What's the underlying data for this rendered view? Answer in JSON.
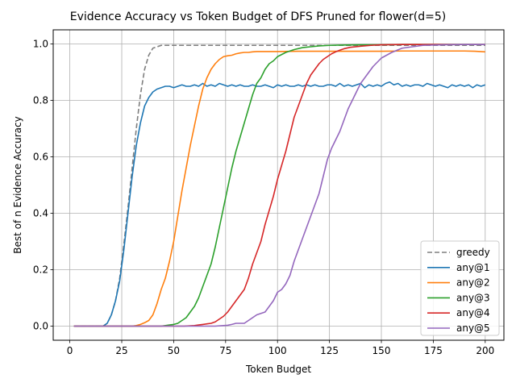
{
  "chart_data": {
    "type": "line",
    "title": "Evidence Accuracy vs Token Budget of DFS Pruned for flower(d=5)",
    "xlabel": "Token Budget",
    "ylabel": "Best of n Evidence Accuracy",
    "xlim": [
      -8,
      209
    ],
    "ylim": [
      -0.05,
      1.05
    ],
    "xticks": [
      0,
      25,
      50,
      75,
      100,
      125,
      150,
      175,
      200
    ],
    "yticks": [
      0.0,
      0.2,
      0.4,
      0.6,
      0.8,
      1.0
    ],
    "grid": true,
    "legend_position": "lower-right",
    "series": [
      {
        "name": "greedy",
        "color": "#7f7f7f",
        "dash": true,
        "x": [
          2,
          16,
          18,
          20,
          22,
          24,
          26,
          28,
          30,
          32,
          34,
          36,
          38,
          40,
          42,
          44,
          46,
          48,
          50,
          75,
          100,
          125,
          150,
          175,
          200
        ],
        "y": [
          0.0,
          0.0,
          0.01,
          0.04,
          0.09,
          0.17,
          0.29,
          0.42,
          0.56,
          0.7,
          0.82,
          0.91,
          0.96,
          0.985,
          0.99,
          0.995,
          0.995,
          0.995,
          0.995,
          0.995,
          0.995,
          0.995,
          0.995,
          0.995,
          0.995
        ]
      },
      {
        "name": "any@1",
        "color": "#1f77b4",
        "dash": false,
        "x": [
          2,
          16,
          18,
          20,
          22,
          24,
          26,
          28,
          30,
          32,
          34,
          36,
          38,
          40,
          42,
          44,
          46,
          48,
          50,
          52,
          54,
          56,
          58,
          60,
          62,
          64,
          66,
          68,
          70,
          72,
          74,
          76,
          78,
          80,
          82,
          84,
          86,
          88,
          90,
          92,
          94,
          96,
          98,
          100,
          102,
          104,
          106,
          108,
          110,
          112,
          114,
          116,
          118,
          120,
          122,
          124,
          126,
          128,
          130,
          132,
          134,
          136,
          138,
          140,
          142,
          144,
          146,
          148,
          150,
          152,
          154,
          156,
          158,
          160,
          162,
          164,
          166,
          168,
          170,
          172,
          174,
          176,
          178,
          180,
          182,
          184,
          186,
          188,
          190,
          192,
          194,
          196,
          198,
          200
        ],
        "y": [
          0.0,
          0.0,
          0.01,
          0.04,
          0.09,
          0.16,
          0.27,
          0.4,
          0.53,
          0.64,
          0.72,
          0.78,
          0.81,
          0.83,
          0.84,
          0.845,
          0.85,
          0.85,
          0.845,
          0.85,
          0.855,
          0.85,
          0.85,
          0.855,
          0.85,
          0.86,
          0.85,
          0.855,
          0.85,
          0.86,
          0.855,
          0.85,
          0.855,
          0.85,
          0.855,
          0.85,
          0.85,
          0.855,
          0.85,
          0.85,
          0.855,
          0.85,
          0.845,
          0.855,
          0.85,
          0.855,
          0.85,
          0.85,
          0.855,
          0.85,
          0.855,
          0.85,
          0.855,
          0.85,
          0.85,
          0.855,
          0.855,
          0.85,
          0.86,
          0.85,
          0.855,
          0.85,
          0.855,
          0.86,
          0.845,
          0.855,
          0.85,
          0.855,
          0.85,
          0.86,
          0.865,
          0.855,
          0.86,
          0.85,
          0.855,
          0.85,
          0.855,
          0.855,
          0.85,
          0.86,
          0.855,
          0.85,
          0.855,
          0.85,
          0.845,
          0.855,
          0.85,
          0.855,
          0.85,
          0.855,
          0.845,
          0.855,
          0.85,
          0.855
        ]
      },
      {
        "name": "any@2",
        "color": "#ff7f0e",
        "dash": false,
        "x": [
          2,
          30,
          32,
          34,
          36,
          38,
          40,
          42,
          44,
          46,
          48,
          50,
          52,
          54,
          56,
          58,
          60,
          62,
          64,
          66,
          68,
          70,
          72,
          74,
          76,
          78,
          80,
          82,
          84,
          86,
          88,
          90,
          95,
          100,
          110,
          120,
          125,
          130,
          135,
          140,
          150,
          160,
          170,
          175,
          180,
          190,
          195,
          200
        ],
        "y": [
          0.0,
          0.0,
          0.002,
          0.006,
          0.012,
          0.02,
          0.04,
          0.08,
          0.13,
          0.17,
          0.23,
          0.3,
          0.39,
          0.48,
          0.56,
          0.64,
          0.71,
          0.78,
          0.84,
          0.88,
          0.91,
          0.93,
          0.945,
          0.955,
          0.958,
          0.96,
          0.965,
          0.968,
          0.97,
          0.97,
          0.972,
          0.973,
          0.973,
          0.973,
          0.974,
          0.974,
          0.974,
          0.974,
          0.974,
          0.974,
          0.974,
          0.975,
          0.975,
          0.975,
          0.975,
          0.975,
          0.974,
          0.972
        ]
      },
      {
        "name": "any@3",
        "color": "#2ca02c",
        "dash": false,
        "x": [
          2,
          44,
          46,
          48,
          50,
          52,
          54,
          56,
          58,
          60,
          62,
          64,
          66,
          68,
          70,
          72,
          74,
          76,
          78,
          80,
          82,
          84,
          86,
          88,
          90,
          92,
          94,
          96,
          98,
          100,
          104,
          108,
          112,
          116,
          120,
          125,
          130,
          140,
          150,
          160,
          170,
          180,
          190,
          200
        ],
        "y": [
          0.0,
          0.0,
          0.002,
          0.004,
          0.006,
          0.01,
          0.02,
          0.03,
          0.05,
          0.07,
          0.1,
          0.14,
          0.18,
          0.22,
          0.28,
          0.35,
          0.42,
          0.49,
          0.56,
          0.62,
          0.67,
          0.72,
          0.77,
          0.82,
          0.86,
          0.88,
          0.91,
          0.93,
          0.94,
          0.955,
          0.97,
          0.98,
          0.987,
          0.99,
          0.993,
          0.995,
          0.996,
          0.997,
          0.997,
          0.998,
          0.998,
          0.998,
          0.998,
          0.998
        ]
      },
      {
        "name": "any@4",
        "color": "#d62728",
        "dash": false,
        "x": [
          2,
          55,
          60,
          62,
          64,
          66,
          68,
          70,
          72,
          74,
          76,
          78,
          80,
          82,
          84,
          86,
          88,
          90,
          92,
          94,
          96,
          98,
          100,
          102,
          104,
          106,
          108,
          110,
          112,
          114,
          116,
          118,
          120,
          122,
          124,
          126,
          128,
          130,
          132,
          135,
          140,
          145,
          150,
          160,
          170,
          180,
          190,
          200
        ],
        "y": [
          0.0,
          0.0,
          0.002,
          0.004,
          0.006,
          0.008,
          0.01,
          0.015,
          0.025,
          0.035,
          0.05,
          0.07,
          0.09,
          0.11,
          0.13,
          0.17,
          0.22,
          0.26,
          0.3,
          0.36,
          0.41,
          0.46,
          0.52,
          0.57,
          0.62,
          0.68,
          0.74,
          0.78,
          0.82,
          0.86,
          0.89,
          0.91,
          0.93,
          0.945,
          0.955,
          0.965,
          0.972,
          0.978,
          0.983,
          0.988,
          0.992,
          0.995,
          0.997,
          0.998,
          0.998,
          0.998,
          0.998,
          0.998
        ]
      },
      {
        "name": "any@5",
        "color": "#9467bd",
        "dash": false,
        "x": [
          2,
          70,
          76,
          78,
          80,
          82,
          84,
          86,
          88,
          90,
          92,
          94,
          96,
          98,
          100,
          102,
          104,
          106,
          108,
          110,
          112,
          114,
          116,
          118,
          120,
          122,
          124,
          126,
          128,
          130,
          132,
          134,
          136,
          138,
          140,
          142,
          144,
          146,
          148,
          150,
          155,
          160,
          165,
          170,
          180,
          190,
          200
        ],
        "y": [
          0.0,
          0.0,
          0.003,
          0.006,
          0.01,
          0.01,
          0.01,
          0.02,
          0.03,
          0.04,
          0.045,
          0.05,
          0.07,
          0.09,
          0.12,
          0.13,
          0.15,
          0.18,
          0.23,
          0.27,
          0.31,
          0.35,
          0.39,
          0.43,
          0.47,
          0.53,
          0.59,
          0.63,
          0.66,
          0.69,
          0.73,
          0.77,
          0.8,
          0.83,
          0.86,
          0.88,
          0.9,
          0.92,
          0.935,
          0.95,
          0.97,
          0.985,
          0.99,
          0.995,
          0.997,
          0.998,
          0.998
        ]
      }
    ]
  }
}
